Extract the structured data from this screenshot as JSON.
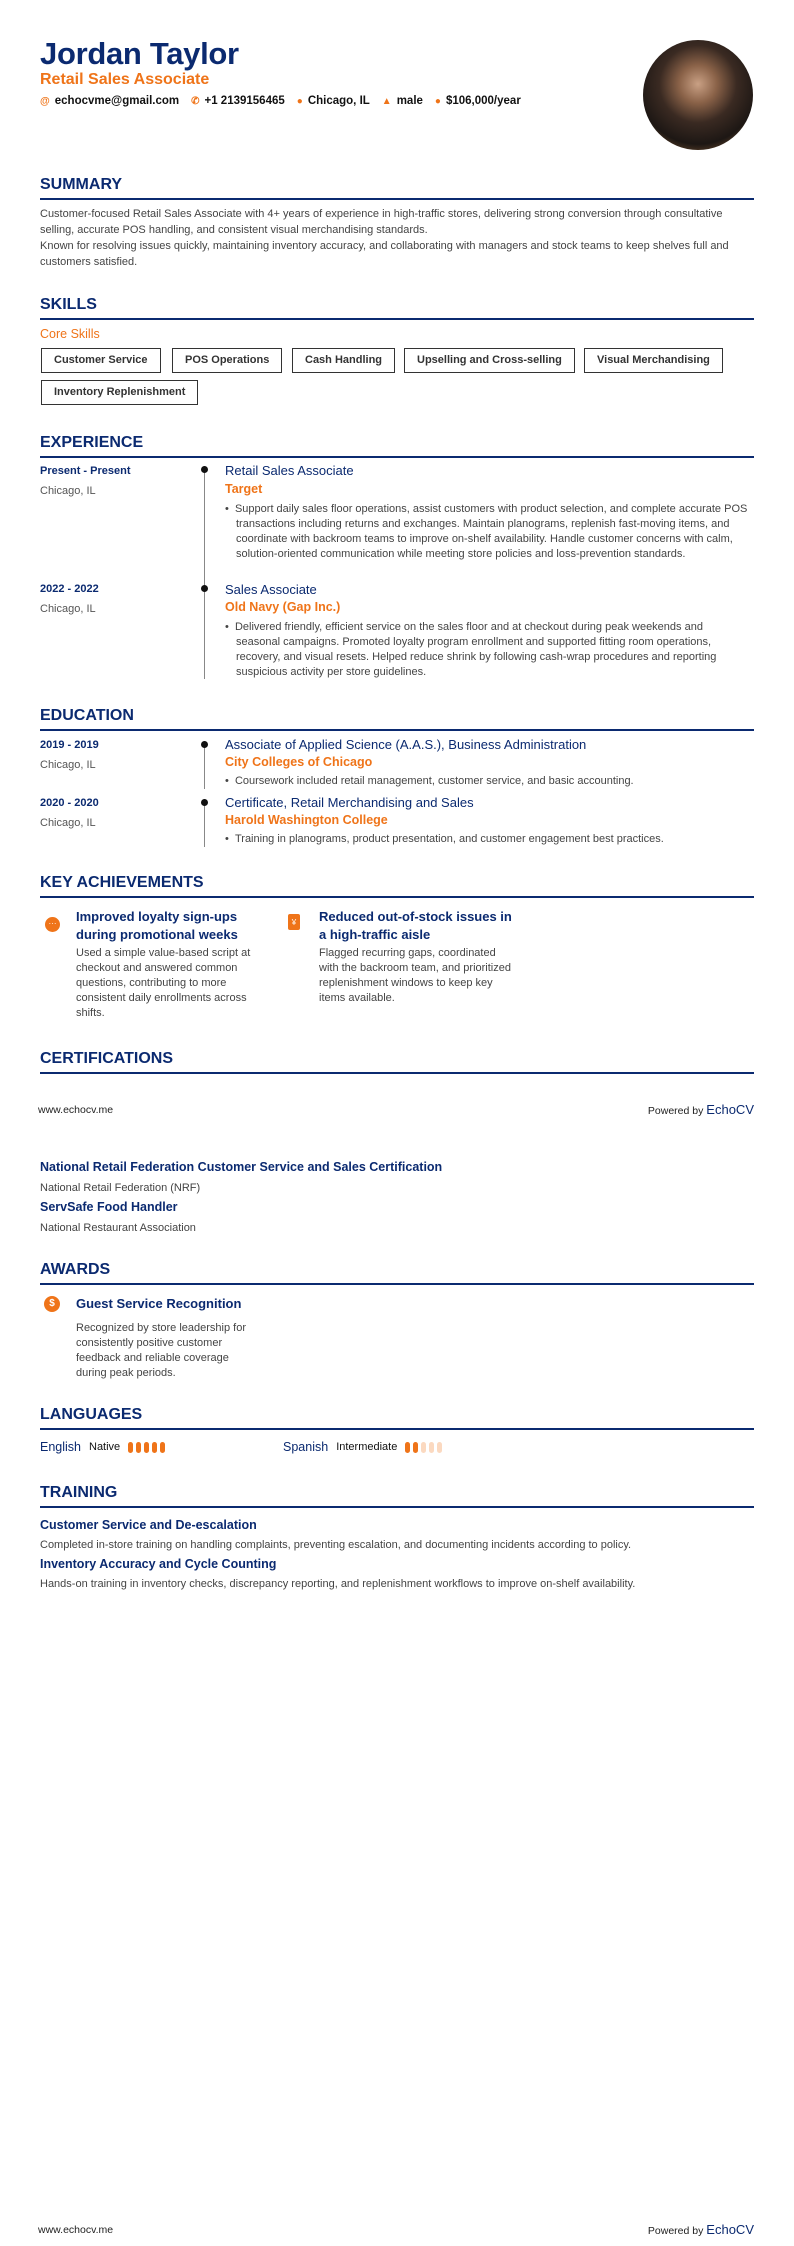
{
  "header": {
    "name": "Jordan Taylor",
    "title": "Retail Sales Associate",
    "contacts": [
      {
        "icon": "at-icon",
        "value": "echocvme@gmail.com"
      },
      {
        "icon": "phone-icon",
        "value": "+1 2139156465"
      },
      {
        "icon": "location-icon",
        "value": "Chicago, IL"
      },
      {
        "icon": "person-icon",
        "value": "male"
      },
      {
        "icon": "salary-icon",
        "value": "$106,000/year"
      }
    ]
  },
  "colors": {
    "accent": "#ef7419",
    "primary": "#0b2a70"
  },
  "summary": {
    "heading": "SUMMARY",
    "paragraphs": [
      "Customer-focused Retail Sales Associate with 4+ years of experience in high-traffic stores, delivering strong conversion through consultative selling, accurate POS handling, and consistent visual merchandising standards.",
      "Known for resolving issues quickly, maintaining inventory accuracy, and collaborating with managers and stock teams to keep shelves full and customers satisfied."
    ]
  },
  "skills": {
    "heading": "SKILLS",
    "group": "Core Skills",
    "items": [
      "Customer Service",
      "POS Operations",
      "Cash Handling",
      "Upselling and Cross-selling",
      "Visual Merchandising",
      "Inventory Replenishment"
    ]
  },
  "experience": {
    "heading": "EXPERIENCE",
    "items": [
      {
        "dates": "Present - Present",
        "location": "Chicago, IL",
        "title": "Retail Sales Associate",
        "company": "Target",
        "bullet": "Support daily sales floor operations, assist customers with product selection, and complete accurate POS transactions including returns and exchanges. Maintain planograms, replenish fast-moving items, and coordinate with backroom teams to improve on-shelf availability. Handle customer concerns with calm, solution-oriented communication while meeting store policies and loss-prevention standards."
      },
      {
        "dates": "2022 - 2022",
        "location": "Chicago, IL",
        "title": "Sales Associate",
        "company": "Old Navy (Gap Inc.)",
        "bullet": "Delivered friendly, efficient service on the sales floor and at checkout during peak weekends and seasonal campaigns. Promoted loyalty program enrollment and supported fitting room operations, recovery, and visual resets. Helped reduce shrink by following cash-wrap procedures and reporting suspicious activity per store guidelines."
      }
    ]
  },
  "education": {
    "heading": "EDUCATION",
    "items": [
      {
        "dates": "2019 - 2019",
        "location": "Chicago, IL",
        "degree": "Associate of Applied Science (A.A.S.), Business Administration",
        "school": "City Colleges of Chicago",
        "bullet": "Coursework included retail management, customer service, and basic accounting."
      },
      {
        "dates": "2020 - 2020",
        "location": "Chicago, IL",
        "degree": "Certificate, Retail Merchandising and Sales",
        "school": "Harold Washington College",
        "bullet": "Training in planograms, product presentation, and customer engagement best practices."
      }
    ]
  },
  "achievements": {
    "heading": "KEY ACHIEVEMENTS",
    "items": [
      {
        "icon": "chat-bubble-icon",
        "title": "Improved loyalty sign-ups during promotional weeks",
        "description": "Used a simple value-based script at checkout and answered common questions, contributing to more consistent daily enrollments across shifts."
      },
      {
        "icon": "document-icon",
        "title": "Reduced out-of-stock issues in a high-traffic aisle",
        "description": "Flagged recurring gaps, coordinated with the backroom team, and prioritized replenishment windows to keep key items available."
      }
    ]
  },
  "certifications": {
    "heading": "CERTIFICATIONS",
    "items": [
      {
        "name": "National Retail Federation Customer Service and Sales Certification",
        "issuer": "National Retail Federation (NRF)"
      },
      {
        "name": "ServSafe Food Handler",
        "issuer": "National Restaurant Association"
      }
    ]
  },
  "awards": {
    "heading": "AWARDS",
    "items": [
      {
        "icon": "dollar-icon",
        "title": "Guest Service Recognition",
        "description": "Recognized by store leadership for consistently positive customer feedback and reliable coverage during peak periods."
      }
    ]
  },
  "languages": {
    "heading": "LANGUAGES",
    "items": [
      {
        "name": "English",
        "level": "Native",
        "rating": 5
      },
      {
        "name": "Spanish",
        "level": "Intermediate",
        "rating": 2
      }
    ],
    "max_rating": 5
  },
  "training": {
    "heading": "TRAINING",
    "items": [
      {
        "title": "Customer Service and De-escalation",
        "description": "Completed in-store training on handling complaints, preventing escalation, and documenting incidents according to policy."
      },
      {
        "title": "Inventory Accuracy and Cycle Counting",
        "description": "Hands-on training in inventory checks, discrepancy reporting, and replenishment workflows to improve on-shelf availability."
      }
    ]
  },
  "footer": {
    "site": "www.echocv.me",
    "powered": "Powered by",
    "brand": "EchoCV"
  }
}
